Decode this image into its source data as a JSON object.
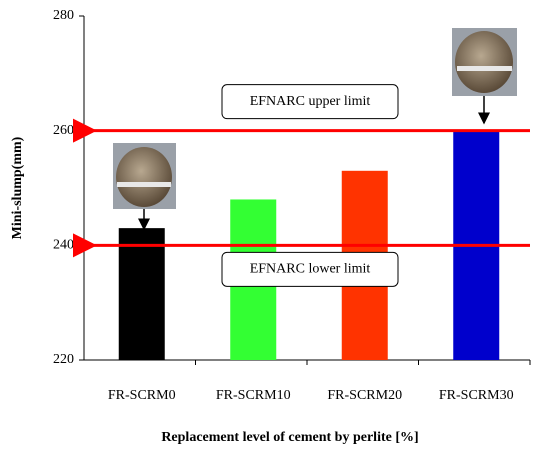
{
  "chart_data": {
    "type": "bar",
    "y_label": "Mini-slump(mm)",
    "x_label": "Replacement level of cement by perlite [%]",
    "categories": [
      "FR-SCRM0",
      "FR-SCRM10",
      "FR-SCRM20",
      "FR-SCRM30"
    ],
    "values": [
      243,
      248,
      253,
      260
    ],
    "colors": [
      "#000000",
      "#33ff33",
      "#ff3300",
      "#0000cc"
    ],
    "ylim": [
      220,
      280
    ],
    "yticks": [
      220,
      240,
      260,
      280
    ],
    "reference_lines": [
      {
        "value": 260,
        "label": "EFNARC upper limit",
        "color": "#ff0000"
      },
      {
        "value": 240,
        "label": "EFNARC lower limit",
        "color": "#ff0000"
      }
    ]
  }
}
